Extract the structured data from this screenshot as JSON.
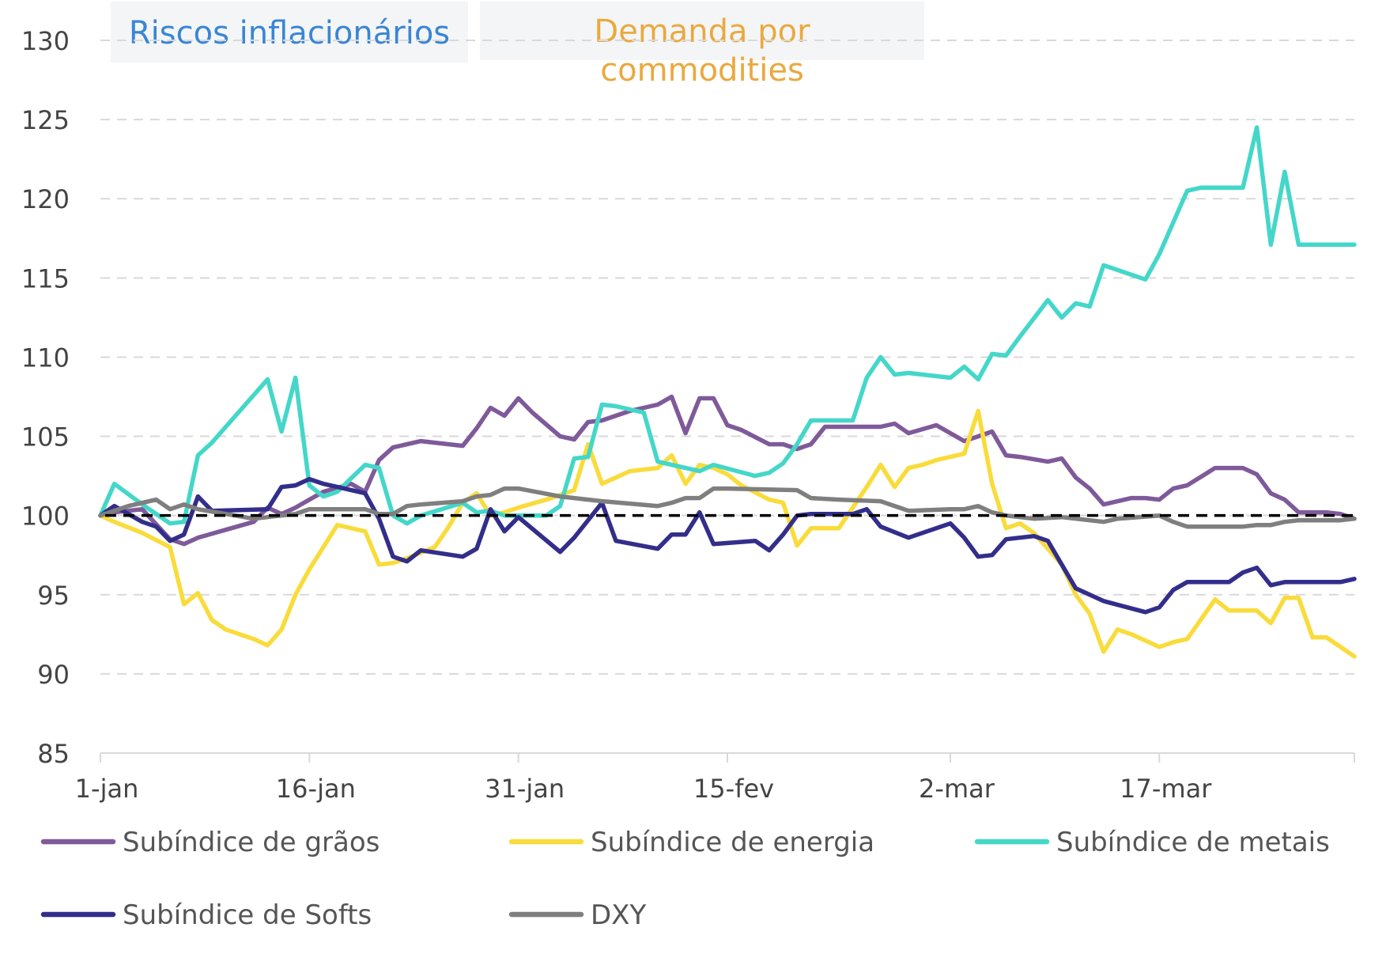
{
  "chart_data": {
    "type": "line",
    "xlabel": "",
    "ylabel": "",
    "ylim": [
      85,
      130
    ],
    "yticks": [
      "85",
      "90",
      "95",
      "100",
      "105",
      "110",
      "115",
      "120",
      "125",
      "130"
    ],
    "xlim": [
      "1-jan",
      "31-mar"
    ],
    "xticks": [
      {
        "label": "1-jan",
        "date": "01-01"
      },
      {
        "label": "16-jan",
        "date": "01-16"
      },
      {
        "label": "31-jan",
        "date": "01-31"
      },
      {
        "label": "15-fev",
        "date": "02-15"
      },
      {
        "label": "2-mar",
        "date": "03-02"
      },
      {
        "label": "17-mar",
        "date": "03-17"
      }
    ],
    "grid": "horizontal dashed",
    "reference_line": {
      "y": 100,
      "style": "black dashed"
    },
    "legend_position": "bottom",
    "annotations": [
      {
        "text": "Riscos inflacionários",
        "color": "#3a86d4",
        "background": "#f4f5f7"
      },
      {
        "text": "Demanda por commodities",
        "lines": [
          "Demanda por",
          "commodities"
        ],
        "color": "#eaa93e",
        "background": "#f4f5f7"
      }
    ],
    "series": [
      {
        "name": "Subíndice de grãos",
        "color": "#7f5a9a",
        "dates": [
          "01-01",
          "01-02",
          "01-04",
          "01-06",
          "01-07",
          "01-08",
          "01-10",
          "01-12",
          "01-13",
          "01-14",
          "01-15",
          "01-16",
          "01-17",
          "01-19",
          "01-20",
          "01-21",
          "01-22",
          "01-24",
          "01-26",
          "01-27",
          "01-28",
          "01-29",
          "01-30",
          "01-31",
          "02-01",
          "02-03",
          "02-04",
          "02-05",
          "02-06",
          "02-08",
          "02-10",
          "02-11",
          "02-12",
          "02-13",
          "02-14",
          "02-15",
          "02-16",
          "02-18",
          "02-19",
          "02-20",
          "02-21",
          "02-22",
          "02-23",
          "02-25",
          "02-26",
          "02-27",
          "02-28",
          "03-01",
          "03-03",
          "03-04",
          "03-05",
          "03-06",
          "03-07",
          "03-09",
          "03-10",
          "03-11",
          "03-12",
          "03-13",
          "03-15",
          "03-16",
          "03-17",
          "03-18",
          "03-19",
          "03-21",
          "03-22",
          "03-23",
          "03-24",
          "03-25",
          "03-26",
          "03-27",
          "03-28",
          "03-29",
          "03-30",
          "03-31"
        ],
        "values": [
          100,
          100.2,
          100.4,
          98.5,
          98.2,
          98.6,
          99.1,
          99.6,
          100.5,
          100.1,
          100.5,
          101,
          101.5,
          102,
          101.5,
          103.5,
          104.3,
          104.7,
          104.5,
          104.4,
          105.5,
          106.8,
          106.3,
          107.4,
          106.5,
          105,
          104.8,
          105.9,
          106,
          106.6,
          107,
          107.5,
          105.2,
          107.4,
          107.4,
          105.7,
          105.4,
          104.5,
          104.5,
          104.2,
          104.5,
          105.6,
          105.6,
          105.6,
          105.6,
          105.8,
          105.2,
          105.7,
          104.7,
          105.0,
          105.3,
          103.8,
          103.7,
          103.4,
          103.6,
          102.4,
          101.7,
          100.7,
          101.1,
          101.1,
          101,
          101.7,
          101.9,
          103,
          103,
          103,
          102.6,
          101.4,
          101,
          100.2,
          100.2,
          100.2,
          100.1,
          99.8
        ]
      },
      {
        "name": "Subíndice de energia",
        "color": "#f9dc3c",
        "dates": [
          "01-01",
          "01-02",
          "01-04",
          "01-06",
          "01-07",
          "01-08",
          "01-09",
          "01-10",
          "01-12",
          "01-13",
          "01-14",
          "01-15",
          "01-16",
          "01-18",
          "01-20",
          "01-21",
          "01-22",
          "01-23",
          "01-25",
          "01-26",
          "01-27",
          "01-28",
          "01-29",
          "01-30",
          "01-31",
          "02-02",
          "02-03",
          "02-04",
          "02-05",
          "02-06",
          "02-08",
          "02-10",
          "02-11",
          "02-12",
          "02-13",
          "02-14",
          "02-15",
          "02-16",
          "02-18",
          "02-19",
          "02-20",
          "02-21",
          "02-22",
          "02-23",
          "02-25",
          "02-26",
          "02-27",
          "02-28",
          "02-29",
          "03-01",
          "03-03",
          "03-04",
          "03-05",
          "03-06",
          "03-07",
          "03-08",
          "03-10",
          "03-11",
          "03-12",
          "03-13",
          "03-14",
          "03-15",
          "03-17",
          "03-18",
          "03-19",
          "03-21",
          "03-22",
          "03-23",
          "03-24",
          "03-25",
          "03-26",
          "03-27",
          "03-28",
          "03-29",
          "03-31"
        ],
        "values": [
          100,
          99.6,
          98.9,
          98,
          94.4,
          95.1,
          93.4,
          92.8,
          92.2,
          91.8,
          92.8,
          95,
          96.6,
          99.4,
          99,
          96.9,
          97,
          97.3,
          98,
          99.3,
          100.8,
          101.4,
          100,
          100.2,
          100.5,
          101,
          101.3,
          101.6,
          104.5,
          102,
          102.8,
          103,
          103.8,
          102,
          103.2,
          103,
          102.6,
          101.9,
          101,
          100.8,
          98.1,
          99.2,
          99.2,
          99.2,
          101.8,
          103.2,
          101.8,
          103,
          103.2,
          103.5,
          103.9,
          106.6,
          102,
          99.2,
          99.5,
          98.9,
          96.9,
          95,
          93.8,
          91.4,
          92.8,
          92.5,
          91.7,
          92,
          92.2,
          94.7,
          94,
          94,
          94,
          93.2,
          94.8,
          94.8,
          92.3,
          92.3,
          91.1
        ]
      },
      {
        "name": "Subíndice de metais",
        "color": "#44d7c9",
        "dates": [
          "01-01",
          "01-02",
          "01-04",
          "01-06",
          "01-07",
          "01-08",
          "01-09",
          "01-10",
          "01-13",
          "01-14",
          "01-15",
          "01-16",
          "01-17",
          "01-18",
          "01-20",
          "01-21",
          "01-22",
          "01-23",
          "01-24",
          "01-27",
          "01-28",
          "01-29",
          "01-30",
          "01-31",
          "02-02",
          "02-03",
          "02-04",
          "02-05",
          "02-06",
          "02-07",
          "02-09",
          "02-10",
          "02-11",
          "02-13",
          "02-14",
          "02-17",
          "02-18",
          "02-19",
          "02-20",
          "02-21",
          "02-23",
          "02-24",
          "02-25",
          "02-26",
          "02-27",
          "02-28",
          "03-02",
          "03-03",
          "03-04",
          "03-05",
          "03-06",
          "03-07",
          "03-09",
          "03-10",
          "03-11",
          "03-12",
          "03-13",
          "03-16",
          "03-17",
          "03-19",
          "03-20",
          "03-21",
          "03-23",
          "03-24",
          "03-25",
          "03-26",
          "03-27",
          "03-28",
          "03-29",
          "03-31"
        ],
        "values": [
          100,
          102,
          100.7,
          99.5,
          99.6,
          103.8,
          104.6,
          105.6,
          108.6,
          105.3,
          108.7,
          101.9,
          101.2,
          101.5,
          103.2,
          103,
          100,
          99.5,
          100,
          100.8,
          100.2,
          100.3,
          100,
          100,
          100,
          100.6,
          103.6,
          103.7,
          107,
          106.9,
          106.5,
          103.4,
          103.2,
          102.8,
          103.2,
          102.5,
          102.7,
          103.3,
          104.5,
          106,
          106,
          106,
          108.7,
          110,
          108.9,
          109,
          108.7,
          109.4,
          108.6,
          110.2,
          110.1,
          111.3,
          113.6,
          112.5,
          113.4,
          113.2,
          115.8,
          114.9,
          116.5,
          120.5,
          120.7,
          120.7,
          120.7,
          124.5,
          117.1,
          121.7,
          117.1,
          117.1,
          117.1,
          117.1
        ]
      },
      {
        "name": "Subíndice de Softs",
        "color": "#332e8a",
        "dates": [
          "01-01",
          "01-02",
          "01-04",
          "01-05",
          "01-06",
          "01-07",
          "01-08",
          "01-09",
          "01-13",
          "01-14",
          "01-15",
          "01-16",
          "01-17",
          "01-20",
          "01-21",
          "01-22",
          "01-23",
          "01-24",
          "01-27",
          "01-28",
          "01-29",
          "01-30",
          "01-31",
          "02-03",
          "02-04",
          "02-06",
          "02-07",
          "02-10",
          "02-11",
          "02-12",
          "02-13",
          "02-14",
          "02-17",
          "02-18",
          "02-19",
          "02-20",
          "02-21",
          "02-24",
          "02-25",
          "02-26",
          "02-28",
          "03-02",
          "03-03",
          "03-04",
          "03-05",
          "03-06",
          "03-08",
          "03-09",
          "03-10",
          "03-11",
          "03-13",
          "03-16",
          "03-17",
          "03-18",
          "03-19",
          "03-21",
          "03-22",
          "03-23",
          "03-24",
          "03-25",
          "03-26",
          "03-27",
          "03-28",
          "03-29",
          "03-30",
          "03-31"
        ],
        "values": [
          100,
          100.6,
          99.6,
          99.3,
          98.4,
          98.8,
          101.2,
          100.3,
          100.4,
          101.8,
          101.9,
          102.3,
          102,
          101.4,
          99.8,
          97.4,
          97.1,
          97.8,
          97.4,
          97.9,
          100.4,
          99,
          99.9,
          97.7,
          98.6,
          100.8,
          98.4,
          97.9,
          98.8,
          98.8,
          100.2,
          98.2,
          98.4,
          97.8,
          98.8,
          100,
          100.1,
          100.1,
          100.4,
          99.3,
          98.6,
          99.5,
          98.6,
          97.4,
          97.5,
          98.5,
          98.7,
          98.4,
          96.9,
          95.4,
          94.6,
          93.9,
          94.2,
          95.3,
          95.8,
          95.8,
          95.8,
          96.4,
          96.7,
          95.6,
          95.8,
          95.8,
          95.8,
          95.8,
          95.8,
          96
        ]
      },
      {
        "name": "DXY",
        "color": "#7f7f7f",
        "dates": [
          "01-01",
          "01-03",
          "01-05",
          "01-06",
          "01-07",
          "01-08",
          "01-10",
          "01-12",
          "01-15",
          "01-16",
          "01-17",
          "01-20",
          "01-21",
          "01-22",
          "01-23",
          "01-24",
          "01-27",
          "01-28",
          "01-29",
          "01-30",
          "01-31",
          "02-03",
          "02-04",
          "02-06",
          "02-10",
          "02-11",
          "02-12",
          "02-13",
          "02-14",
          "02-15",
          "02-20",
          "02-21",
          "02-23",
          "02-26",
          "02-28",
          "03-02",
          "03-03",
          "03-04",
          "03-05",
          "03-06",
          "03-08",
          "03-10",
          "03-13",
          "03-14",
          "03-17",
          "03-18",
          "03-19",
          "03-23",
          "03-24",
          "03-25",
          "03-26",
          "03-27",
          "03-30",
          "03-31"
        ],
        "values": [
          100,
          100.6,
          101,
          100.4,
          100.7,
          100.4,
          100.1,
          99.8,
          100.1,
          100.4,
          100.4,
          100.4,
          100.1,
          100.1,
          100.6,
          100.7,
          100.9,
          101.2,
          101.3,
          101.7,
          101.7,
          101.2,
          101.1,
          100.9,
          100.6,
          100.8,
          101.1,
          101.1,
          101.7,
          101.7,
          101.6,
          101.1,
          101,
          100.9,
          100.3,
          100.4,
          100.4,
          100.6,
          100.2,
          100,
          99.8,
          99.9,
          99.6,
          99.8,
          100,
          99.6,
          99.3,
          99.3,
          99.4,
          99.4,
          99.6,
          99.7,
          99.7,
          99.8
        ]
      }
    ]
  }
}
